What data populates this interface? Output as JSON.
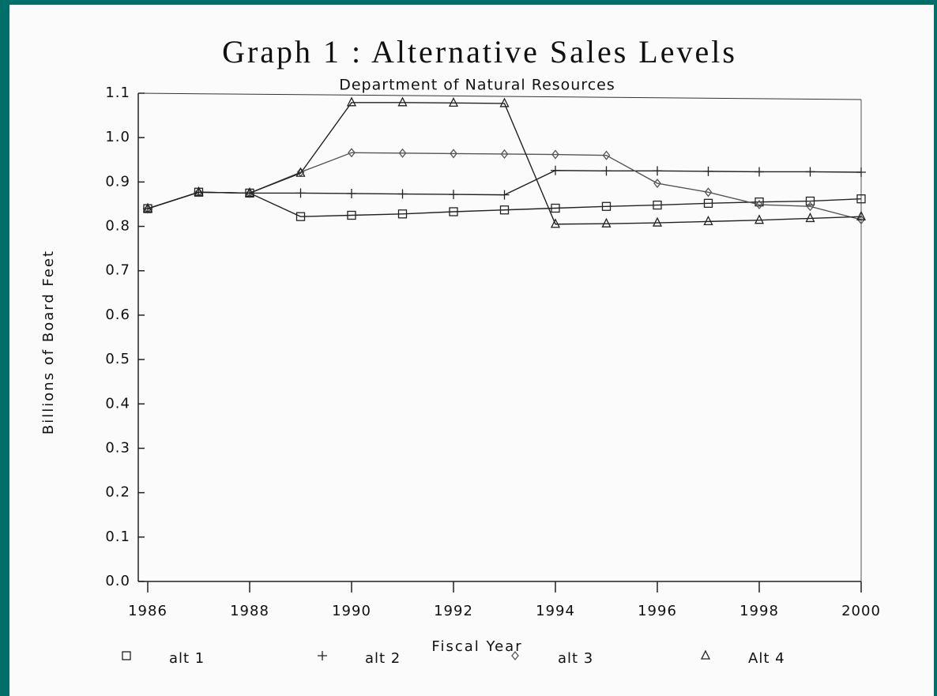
{
  "chart_data": {
    "type": "line",
    "title": "Graph 1 : Alternative Sales Levels",
    "subtitle": "Department of Natural Resources",
    "y_label": "Billions of Board Feet",
    "x_label": "Fiscal Year",
    "x": [
      1986,
      1987,
      1988,
      1989,
      1990,
      1991,
      1992,
      1993,
      1994,
      1995,
      1996,
      1997,
      1998,
      1999,
      2000
    ],
    "xlim": [
      1986,
      2000
    ],
    "xticks": [
      1986,
      1988,
      1990,
      1992,
      1994,
      1996,
      1998,
      2000
    ],
    "ylim": [
      0,
      1.1
    ],
    "yticks": [
      {
        "value": 0,
        "label": "0.0"
      },
      0.1,
      0.2,
      0.3,
      0.4,
      0.5,
      0.6,
      0.7,
      0.8,
      0.9,
      {
        "value": 1,
        "label": "1.0"
      },
      1.1
    ],
    "series": [
      {
        "name": "alt 1",
        "color": "#222222",
        "marker": "square",
        "values": [
          0.84,
          0.877,
          0.875,
          0.822,
          0.825,
          0.828,
          0.833,
          0.837,
          0.841,
          0.845,
          0.848,
          0.852,
          0.855,
          0.857,
          0.862
        ]
      },
      {
        "name": "alt 2",
        "color": "#222222",
        "marker": "plus",
        "values": [
          0.84,
          0.877,
          0.875,
          0.875,
          0.874,
          0.873,
          0.872,
          0.871,
          0.926,
          0.925,
          0.925,
          0.924,
          0.923,
          0.923,
          0.922
        ]
      },
      {
        "name": "alt 3",
        "color": "#555555",
        "marker": "diamond",
        "values": [
          0.84,
          0.877,
          0.875,
          0.922,
          0.966,
          0.965,
          0.964,
          0.963,
          0.962,
          0.96,
          0.897,
          0.877,
          0.849,
          0.845,
          0.815
        ]
      },
      {
        "name": "Alt 4",
        "color": "#222222",
        "marker": "triangle",
        "values": [
          0.84,
          0.877,
          0.875,
          0.92,
          1.079,
          1.079,
          1.078,
          1.077,
          0.805,
          0.806,
          0.808,
          0.811,
          0.814,
          0.818,
          0.822
        ]
      }
    ]
  }
}
